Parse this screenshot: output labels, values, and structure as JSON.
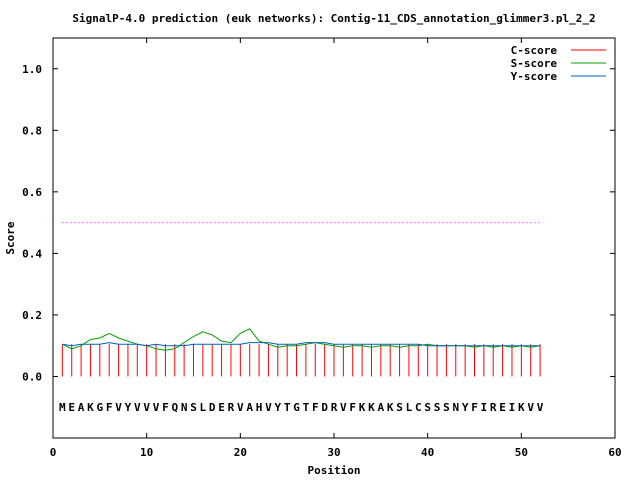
{
  "chart_data": {
    "type": "line",
    "title": "SignalP-4.0 prediction (euk networks): Contig-11_CDS_annotation_glimmer3.pl_2_2",
    "xlabel": "Position",
    "ylabel": "Score",
    "xlim": [
      0,
      60
    ],
    "ylim": [
      -0.2,
      1.1
    ],
    "x_ticks": [
      0,
      10,
      20,
      30,
      40,
      50,
      60
    ],
    "y_ticks": [
      0.0,
      0.2,
      0.4,
      0.6,
      0.8,
      1.0
    ],
    "x_tick_labels": [
      "0",
      "10",
      "20",
      "30",
      "40",
      "50",
      "60"
    ],
    "y_tick_labels": [
      "0.0",
      "0.2",
      "0.4",
      "0.6",
      "0.8",
      "1.0"
    ],
    "grid": false,
    "legend_position": "top-right",
    "threshold": {
      "value": 0.5,
      "x_range": [
        1,
        52
      ],
      "color": "#ff00ff",
      "style": "dotted"
    },
    "sequence": [
      "M",
      "E",
      "A",
      "K",
      "G",
      "F",
      "V",
      "Y",
      "V",
      "V",
      "V",
      "F",
      "Q",
      "N",
      "S",
      "L",
      "D",
      "E",
      "R",
      "V",
      "A",
      "H",
      "V",
      "Y",
      "T",
      "G",
      "T",
      "F",
      "D",
      "R",
      "V",
      "F",
      "K",
      "K",
      "A",
      "K",
      "S",
      "L",
      "C",
      "S",
      "S",
      "S",
      "N",
      "Y",
      "F",
      "I",
      "R",
      "E",
      "I",
      "K",
      "V",
      "V"
    ],
    "sequence_y": -0.1,
    "series": [
      {
        "name": "C-score",
        "color": "#ff0000",
        "style": "impulse",
        "x": [
          1,
          2,
          3,
          4,
          5,
          6,
          7,
          8,
          9,
          10,
          11,
          12,
          13,
          14,
          15,
          16,
          17,
          18,
          19,
          20,
          21,
          22,
          23,
          24,
          25,
          26,
          27,
          28,
          29,
          30,
          31,
          32,
          33,
          34,
          35,
          36,
          37,
          38,
          39,
          40,
          41,
          42,
          43,
          44,
          45,
          46,
          47,
          48,
          49,
          50,
          51,
          52
        ],
        "values": [
          0.105,
          0.105,
          0.105,
          0.105,
          0.105,
          0.105,
          0.105,
          0.105,
          0.105,
          0.105,
          0.105,
          0.105,
          0.105,
          0.105,
          0.105,
          0.105,
          0.105,
          0.105,
          0.105,
          0.105,
          0.105,
          0.105,
          0.105,
          0.105,
          0.105,
          0.105,
          0.105,
          0.105,
          0.105,
          0.105,
          0.105,
          0.105,
          0.105,
          0.105,
          0.105,
          0.105,
          0.105,
          0.105,
          0.105,
          0.105,
          0.105,
          0.105,
          0.105,
          0.105,
          0.105,
          0.105,
          0.105,
          0.105,
          0.105,
          0.105,
          0.105,
          0.105
        ]
      },
      {
        "name": "S-score",
        "color": "#00a000",
        "style": "line",
        "x": [
          1,
          2,
          3,
          4,
          5,
          6,
          7,
          8,
          9,
          10,
          11,
          12,
          13,
          14,
          15,
          16,
          17,
          18,
          19,
          20,
          21,
          22,
          23,
          24,
          25,
          26,
          27,
          28,
          29,
          30,
          31,
          32,
          33,
          34,
          35,
          36,
          37,
          38,
          39,
          40,
          41,
          42,
          43,
          44,
          45,
          46,
          47,
          48,
          49,
          50,
          51,
          52
        ],
        "values": [
          0.105,
          0.09,
          0.1,
          0.12,
          0.125,
          0.14,
          0.125,
          0.115,
          0.105,
          0.1,
          0.09,
          0.085,
          0.09,
          0.11,
          0.13,
          0.145,
          0.135,
          0.115,
          0.11,
          0.14,
          0.155,
          0.115,
          0.105,
          0.095,
          0.1,
          0.1,
          0.105,
          0.11,
          0.105,
          0.1,
          0.095,
          0.1,
          0.1,
          0.095,
          0.1,
          0.1,
          0.095,
          0.1,
          0.1,
          0.105,
          0.1,
          0.1,
          0.1,
          0.1,
          0.095,
          0.1,
          0.095,
          0.1,
          0.095,
          0.1,
          0.095,
          0.1
        ]
      },
      {
        "name": "Y-score",
        "color": "#0060c0",
        "style": "line",
        "x": [
          1,
          2,
          3,
          4,
          5,
          6,
          7,
          8,
          9,
          10,
          11,
          12,
          13,
          14,
          15,
          16,
          17,
          18,
          19,
          20,
          21,
          22,
          23,
          24,
          25,
          26,
          27,
          28,
          29,
          30,
          31,
          32,
          33,
          34,
          35,
          36,
          37,
          38,
          39,
          40,
          41,
          42,
          43,
          44,
          45,
          46,
          47,
          48,
          49,
          50,
          51,
          52
        ],
        "values": [
          0.105,
          0.1,
          0.105,
          0.105,
          0.105,
          0.11,
          0.105,
          0.105,
          0.105,
          0.1,
          0.105,
          0.1,
          0.1,
          0.1,
          0.105,
          0.105,
          0.105,
          0.105,
          0.105,
          0.105,
          0.11,
          0.11,
          0.11,
          0.105,
          0.105,
          0.105,
          0.11,
          0.11,
          0.11,
          0.105,
          0.105,
          0.105,
          0.105,
          0.105,
          0.105,
          0.105,
          0.105,
          0.105,
          0.105,
          0.1,
          0.1,
          0.1,
          0.1,
          0.1,
          0.1,
          0.1,
          0.1,
          0.1,
          0.1,
          0.1,
          0.1,
          0.1
        ]
      }
    ]
  }
}
